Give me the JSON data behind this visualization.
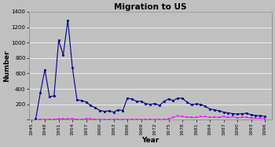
{
  "title": "Migration to US",
  "xlabel": "Year",
  "ylabel": "Number",
  "background_color": "#c0c0c0",
  "years": [
    1946,
    1947,
    1948,
    1949,
    1950,
    1951,
    1952,
    1953,
    1954,
    1955,
    1956,
    1957,
    1958,
    1959,
    1960,
    1961,
    1962,
    1963,
    1964,
    1965,
    1966,
    1967,
    1968,
    1969,
    1970,
    1971,
    1972,
    1973,
    1974,
    1975,
    1976,
    1977,
    1978,
    1979,
    1980,
    1981,
    1982,
    1983,
    1984,
    1985,
    1986,
    1987,
    1988,
    1989,
    1990,
    1991,
    1992,
    1993,
    1994,
    1995,
    1996
  ],
  "blue_line": [
    10,
    350,
    650,
    300,
    310,
    1030,
    840,
    1290,
    680,
    260,
    250,
    230,
    185,
    155,
    120,
    110,
    115,
    100,
    130,
    120,
    280,
    270,
    240,
    240,
    210,
    200,
    210,
    185,
    240,
    270,
    250,
    280,
    280,
    230,
    195,
    205,
    200,
    175,
    140,
    130,
    115,
    100,
    90,
    80,
    75,
    80,
    85,
    65,
    55,
    50,
    45
  ],
  "magenta_line": [
    5,
    5,
    5,
    5,
    5,
    10,
    10,
    10,
    15,
    5,
    5,
    10,
    15,
    5,
    5,
    5,
    5,
    5,
    5,
    5,
    5,
    5,
    5,
    5,
    5,
    5,
    5,
    5,
    5,
    10,
    30,
    50,
    40,
    35,
    30,
    30,
    40,
    40,
    30,
    35,
    30,
    40,
    30,
    40,
    25,
    35,
    30,
    25,
    20,
    20,
    18
  ],
  "green_line": [
    0,
    0,
    0,
    0,
    0,
    0,
    0,
    0,
    0,
    0,
    0,
    0,
    0,
    0,
    0,
    0,
    0,
    0,
    0,
    0,
    0,
    0,
    0,
    0,
    0,
    0,
    0,
    5,
    10,
    10,
    10,
    15,
    10,
    10,
    5,
    5,
    5,
    5,
    5,
    5,
    5,
    5,
    5,
    5,
    5,
    5,
    5,
    5,
    5,
    5,
    5
  ],
  "ylim": [
    0,
    1400
  ],
  "yticks": [
    0,
    200,
    400,
    600,
    800,
    1000,
    1200,
    1400
  ],
  "xticks": [
    1945,
    1948,
    1951,
    1954,
    1957,
    1960,
    1963,
    1966,
    1969,
    1972,
    1975,
    1978,
    1981,
    1984,
    1987,
    1990,
    1993,
    1996
  ],
  "blue_color": "#00008b",
  "magenta_color": "#ff00ff",
  "green_color": "#90ee90",
  "grid_color": "#ffffff",
  "plot_bg": "#c0c0c0",
  "fig_bg": "#c0c0c0"
}
